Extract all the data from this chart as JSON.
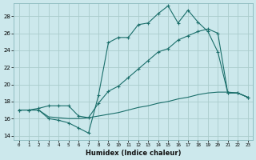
{
  "bg_color": "#cce8ec",
  "grid_color": "#aacccc",
  "line_color": "#1a6e6a",
  "xlabel": "Humidex (Indice chaleur)",
  "xlim": [
    -0.5,
    23.5
  ],
  "ylim": [
    13.5,
    29.5
  ],
  "xticks": [
    0,
    1,
    2,
    3,
    4,
    5,
    6,
    7,
    8,
    9,
    10,
    11,
    12,
    13,
    14,
    15,
    16,
    17,
    18,
    19,
    20,
    21,
    22,
    23
  ],
  "yticks": [
    14,
    16,
    18,
    20,
    22,
    24,
    26,
    28
  ],
  "line1_x": [
    0,
    1,
    2,
    3,
    4,
    5,
    6,
    7,
    8,
    9,
    10,
    11,
    12,
    13,
    14,
    15,
    16,
    17,
    18,
    19,
    20,
    21,
    22,
    23
  ],
  "line1_y": [
    17.0,
    17.0,
    17.0,
    16.0,
    15.8,
    15.5,
    14.9,
    14.3,
    18.7,
    24.9,
    25.5,
    25.5,
    27.0,
    27.2,
    28.3,
    29.2,
    27.2,
    28.7,
    27.3,
    26.2,
    23.8,
    19.0,
    19.0,
    18.5
  ],
  "line2_x": [
    0,
    1,
    2,
    3,
    4,
    5,
    6,
    7,
    8,
    9,
    10,
    11,
    12,
    13,
    14,
    15,
    16,
    17,
    18,
    19,
    20,
    21,
    22,
    23
  ],
  "line2_y": [
    17.0,
    17.0,
    17.2,
    17.5,
    17.5,
    17.5,
    16.3,
    16.1,
    17.8,
    19.2,
    19.8,
    20.8,
    21.8,
    22.8,
    23.8,
    24.2,
    25.2,
    25.7,
    26.2,
    26.5,
    26.0,
    19.0,
    19.0,
    18.5
  ],
  "line3_x": [
    0,
    1,
    2,
    3,
    4,
    5,
    6,
    7,
    8,
    9,
    10,
    11,
    12,
    13,
    14,
    15,
    16,
    17,
    18,
    19,
    20,
    21,
    22,
    23
  ],
  "line3_y": [
    17.0,
    17.0,
    17.0,
    16.2,
    16.1,
    16.0,
    16.0,
    16.1,
    16.3,
    16.5,
    16.7,
    17.0,
    17.3,
    17.5,
    17.8,
    18.0,
    18.3,
    18.5,
    18.8,
    19.0,
    19.1,
    19.1,
    19.0,
    18.5
  ]
}
